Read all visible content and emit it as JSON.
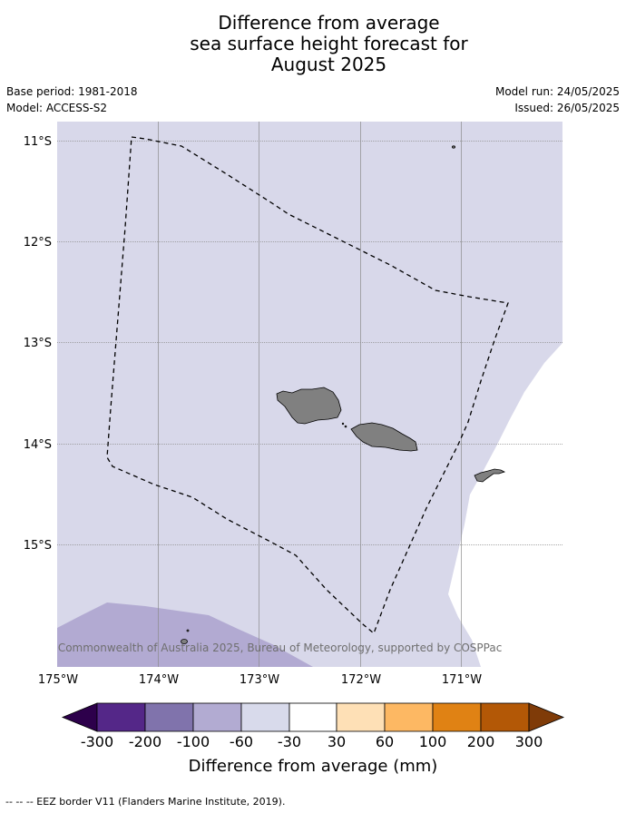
{
  "title": {
    "line1": "Difference from average",
    "line2": "sea surface height forecast for",
    "line3": "August 2025"
  },
  "meta": {
    "base_period": "Base period: 1981-2018",
    "model": "Model: ACCESS-S2",
    "model_run": "Model run: 24/05/2025",
    "issued": "Issued: 26/05/2025"
  },
  "map": {
    "latitude_labels": [
      "11°S",
      "12°S",
      "13°S",
      "14°S",
      "15°S"
    ],
    "longitude_labels": [
      "175°W",
      "174°W",
      "173°W",
      "172°W",
      "171°W"
    ],
    "copyright": "© Commonwealth of Australia 2025, Bureau of Meteorology, supported by COSPPac",
    "colors": {
      "ocean_band_-30_to_-60": "#d8d8ea",
      "ocean_band_-60_to_-100": "#b2aad2",
      "land": "#808080"
    }
  },
  "colorbar": {
    "title": "Difference from average (mm)",
    "tick_labels": [
      "-300",
      "-200",
      "-100",
      "-60",
      "-30",
      "30",
      "60",
      "100",
      "200",
      "300"
    ],
    "colors": {
      "extend_low": "#2d004b",
      "band_1": "#542788",
      "band_2": "#8073ac",
      "band_3": "#b2abd2",
      "band_4": "#d8daeb",
      "band_5": "#ffffff",
      "band_6": "#fee0b6",
      "band_7": "#fdb863",
      "band_8": "#e08214",
      "band_9": "#b35806",
      "extend_high": "#7f3b08"
    }
  },
  "footnote": "--  --  -- EEZ border V11 (Flanders Marine Institute, 2019)."
}
